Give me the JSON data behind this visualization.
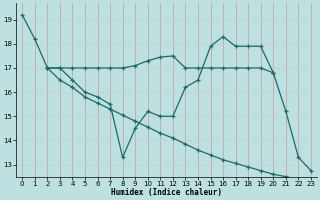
{
  "xlabel": "Humidex (Indice chaleur)",
  "xlim": [
    -0.5,
    23.5
  ],
  "ylim": [
    12.5,
    19.7
  ],
  "yticks": [
    13,
    14,
    15,
    16,
    17,
    18,
    19
  ],
  "xticks": [
    0,
    1,
    2,
    3,
    4,
    5,
    6,
    7,
    8,
    9,
    10,
    11,
    12,
    13,
    14,
    15,
    16,
    17,
    18,
    19,
    20,
    21,
    22,
    23
  ],
  "bg_color": "#bde0e0",
  "grid_color": "#d0d0d0",
  "line_color": "#1a6b6b",
  "line1_x": [
    0,
    1,
    2,
    3,
    4,
    5,
    6,
    7,
    8,
    9,
    10,
    11,
    12,
    13,
    14,
    15,
    16,
    17,
    18,
    19,
    20,
    21,
    22,
    23
  ],
  "line1_y": [
    19.2,
    18.2,
    17.0,
    17.0,
    16.5,
    16.0,
    15.8,
    15.5,
    13.3,
    14.5,
    15.2,
    15.0,
    15.0,
    16.2,
    16.5,
    17.9,
    18.3,
    17.9,
    17.9,
    17.9,
    16.8,
    15.2,
    13.3,
    12.75
  ],
  "line2_x": [
    2,
    3,
    4,
    5,
    6,
    7,
    8,
    9,
    10,
    11,
    12,
    13,
    14,
    15,
    16,
    17,
    18,
    19,
    20
  ],
  "line2_y": [
    17.0,
    17.0,
    17.0,
    17.0,
    17.0,
    17.0,
    17.0,
    17.1,
    17.3,
    17.45,
    17.5,
    17.0,
    17.0,
    17.0,
    17.0,
    17.0,
    17.0,
    17.0,
    16.8
  ],
  "line3_x": [
    2,
    3,
    4,
    5,
    6,
    7,
    8,
    9,
    10,
    11,
    12,
    13,
    14,
    15,
    16,
    17,
    18,
    19,
    20,
    21,
    22,
    23
  ],
  "line3_y": [
    17.0,
    16.5,
    16.2,
    15.8,
    15.55,
    15.3,
    15.05,
    14.8,
    14.55,
    14.3,
    14.1,
    13.85,
    13.6,
    13.4,
    13.2,
    13.05,
    12.9,
    12.75,
    12.6,
    12.5,
    12.4,
    12.3
  ]
}
